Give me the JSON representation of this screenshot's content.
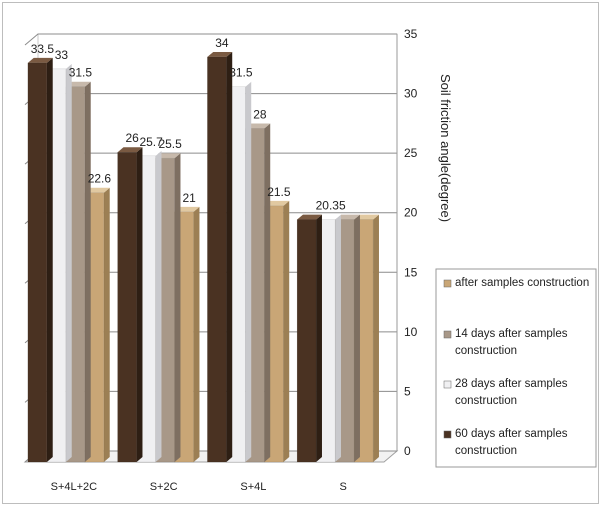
{
  "chart_data": {
    "type": "bar",
    "title": "",
    "xlabel": "",
    "ylabel": "Soil friction angle(degree)",
    "ylim": [
      0,
      35
    ],
    "yticks": [
      0,
      5,
      10,
      15,
      20,
      25,
      30,
      35
    ],
    "grid": true,
    "legend_position": "right",
    "categories": [
      "S+4L+2C",
      "S+2C",
      "S+4L",
      "S"
    ],
    "series": [
      {
        "name": "60 days after samples construction",
        "values": [
          33.5,
          26,
          34,
          20.35
        ],
        "labels": [
          "33.5",
          "26",
          "34",
          ""
        ],
        "colors": {
          "front": "#4a3222",
          "side": "#2e1f14",
          "top": "#7a5a42"
        }
      },
      {
        "name": "28 days after samples construction",
        "values": [
          33,
          25.7,
          31.5,
          20.35
        ],
        "labels": [
          "33",
          "25.7",
          "31.5",
          "20.35"
        ],
        "colors": {
          "front": "#f0f0f2",
          "side": "#c9c9cd",
          "top": "#ffffff"
        }
      },
      {
        "name": "14 days after samples construction",
        "values": [
          31.5,
          25.5,
          28,
          20.35
        ],
        "labels": [
          "31.5",
          "25.5",
          "28",
          ""
        ],
        "colors": {
          "front": "#a89888",
          "side": "#7e6f61",
          "top": "#c7b9ab"
        }
      },
      {
        "name": "after samples construction",
        "values": [
          22.6,
          21,
          21.5,
          20.35
        ],
        "labels": [
          "22.6",
          "21",
          "21.5",
          ""
        ],
        "colors": {
          "front": "#c9a676",
          "side": "#9c7f54",
          "top": "#e1c9a1"
        }
      }
    ]
  }
}
